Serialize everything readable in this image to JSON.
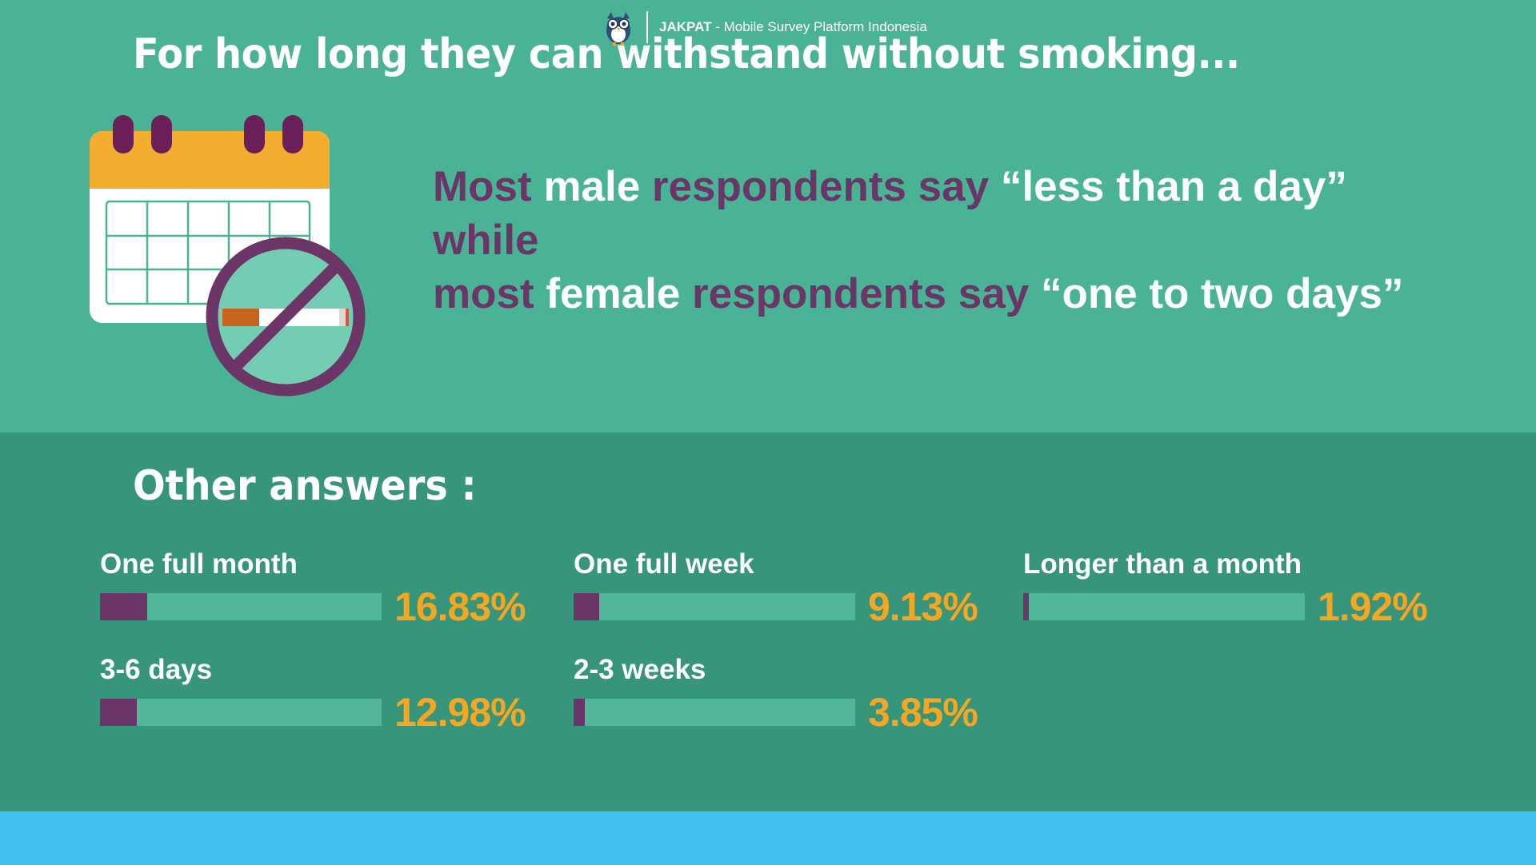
{
  "header": {
    "title": "For how long they can withstand without smoking..."
  },
  "headline": {
    "line1": {
      "p1": "Most ",
      "p2": "male ",
      "p3": "respondents say ",
      "p4": "“less than a day”"
    },
    "line2": "while",
    "line3": {
      "p1": "most ",
      "p2": "female ",
      "p3": "respondents say ",
      "p4": "“one to two days”"
    }
  },
  "other": {
    "title": "Other answers :"
  },
  "chart_data": {
    "type": "bar",
    "unit": "%",
    "ylim": [
      0,
      100
    ],
    "categories": [
      "One full month",
      "3-6 days",
      "One full week",
      "2-3 weeks",
      "Longer than a month"
    ],
    "values": [
      16.83,
      12.98,
      9.13,
      3.85,
      1.92
    ],
    "value_labels": [
      "16.83%",
      "12.98%",
      "9.13%",
      "3.85%",
      "1.92%"
    ]
  },
  "colors": {
    "top_bg": "#4bb395",
    "bottom_bg": "#37957c",
    "footer_bg": "#41c1ef",
    "accent_purple": "#6a3567",
    "accent_orange": "#f5a623",
    "bar_track": "#52b699"
  },
  "icons": {
    "calendar": "calendar-no-smoking-icon",
    "logo": "owl-logo-icon"
  },
  "footer": {
    "brand": "JAKPAT",
    "tagline": " - Mobile Survey Platform Indonesia"
  }
}
